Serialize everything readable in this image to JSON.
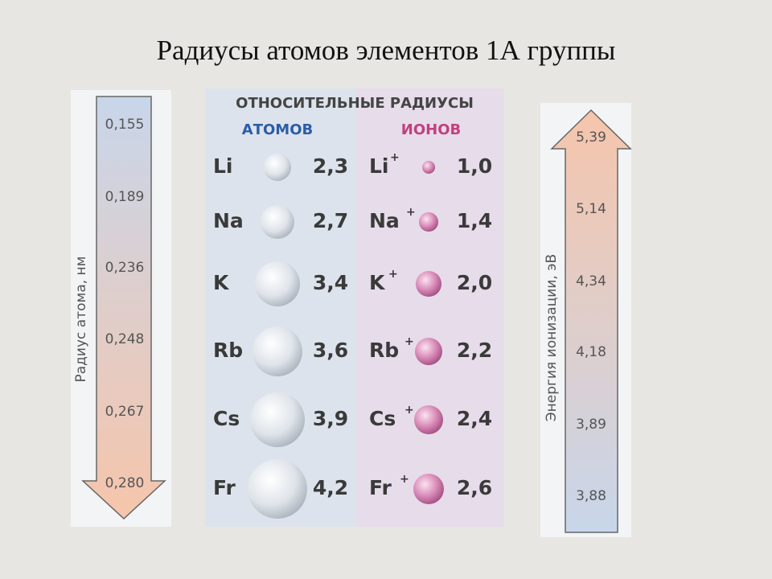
{
  "title": "Радиусы атомов элементов 1А группы",
  "left_arrow": {
    "label": "Радиус атома, нм",
    "values": [
      "0,155",
      "0,189",
      "0,236",
      "0,248",
      "0,267",
      "0,280"
    ]
  },
  "table": {
    "header": "ОТНОСИТЕЛЬНЫЕ РАДИУСЫ",
    "atoms_header": "АТОМОВ",
    "ions_header": "ИОНОВ",
    "rows": [
      {
        "element": "Li",
        "atom_radius": "2,3",
        "ion": "Li",
        "charge": "+",
        "ion_radius": "1,0"
      },
      {
        "element": "Na",
        "atom_radius": "2,7",
        "ion": "Na",
        "charge": "+",
        "ion_radius": "1,4"
      },
      {
        "element": "K",
        "atom_radius": "3,4",
        "ion": "K",
        "charge": "+",
        "ion_radius": "2,0"
      },
      {
        "element": "Rb",
        "atom_radius": "3,6",
        "ion": "Rb",
        "charge": "+",
        "ion_radius": "2,2"
      },
      {
        "element": "Cs",
        "atom_radius": "3,9",
        "ion": "Cs",
        "charge": "+",
        "ion_radius": "2,4"
      },
      {
        "element": "Fr",
        "atom_radius": "4,2",
        "ion": "Fr",
        "charge": "+",
        "ion_radius": "2,6"
      }
    ]
  },
  "right_arrow": {
    "label": "Энергия ионизации, эВ",
    "values": [
      "5,39",
      "5,14",
      "4,34",
      "4,18",
      "3,89",
      "3,88"
    ]
  }
}
